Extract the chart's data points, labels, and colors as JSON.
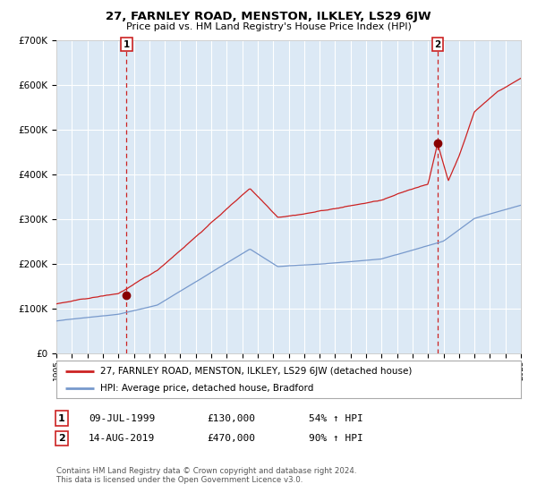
{
  "title": "27, FARNLEY ROAD, MENSTON, ILKLEY, LS29 6JW",
  "subtitle": "Price paid vs. HM Land Registry's House Price Index (HPI)",
  "bg_color": "#dce9f5",
  "red_line_color": "#cc2222",
  "blue_line_color": "#7799cc",
  "marker_color": "#880000",
  "grid_color": "#ffffff",
  "ylim": [
    0,
    700000
  ],
  "yticks": [
    0,
    100000,
    200000,
    300000,
    400000,
    500000,
    600000,
    700000
  ],
  "ytick_labels": [
    "£0",
    "£100K",
    "£200K",
    "£300K",
    "£400K",
    "£500K",
    "£600K",
    "£700K"
  ],
  "xstart_year": 1995,
  "xend_year": 2025,
  "sale1_year": 1999.53,
  "sale1_price": 130000,
  "sale2_year": 2019.62,
  "sale2_price": 470000,
  "sale1_label": "1",
  "sale2_label": "2",
  "legend_line1": "27, FARNLEY ROAD, MENSTON, ILKLEY, LS29 6JW (detached house)",
  "legend_line2": "HPI: Average price, detached house, Bradford",
  "table_row1": [
    "1",
    "09-JUL-1999",
    "£130,000",
    "54% ↑ HPI"
  ],
  "table_row2": [
    "2",
    "14-AUG-2019",
    "£470,000",
    "90% ↑ HPI"
  ],
  "footnote": "Contains HM Land Registry data © Crown copyright and database right 2024.\nThis data is licensed under the Open Government Licence v3.0."
}
